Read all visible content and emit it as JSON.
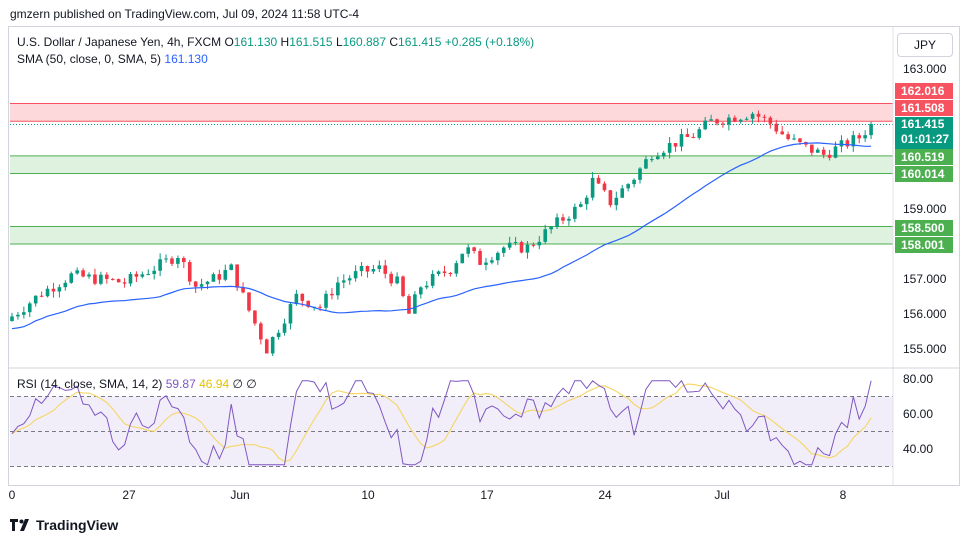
{
  "header": {
    "publisher": "gmzern published on TradingView.com, Jul 09, 2024 11:58 UTC-4"
  },
  "legend": {
    "symbol": "U.S. Dollar / Japanese Yen, 4h, FXCM",
    "o_label": "O",
    "o": "161.130",
    "h_label": "H",
    "h": "161.515",
    "l_label": "L",
    "l": "160.887",
    "c_label": "C",
    "c": "161.415",
    "change": "+0.285 (+0.18%)",
    "sma_label": "SMA (50, close, 0, SMA, 5)",
    "sma_value": "161.130",
    "rsi_label": "RSI (14, close, SMA, 14, 2)",
    "rsi_value": "59.87",
    "rsi_ma_value": "46.94",
    "rsi_extra1": "∅",
    "rsi_extra2": "∅"
  },
  "currency": "JPY",
  "price_tags": {
    "zone1_top": "162.016",
    "zone1_bottom": "161.508",
    "last_price": "161.415",
    "countdown": "01:01:27",
    "zone2_top": "160.519",
    "zone2_bottom": "160.014",
    "zone3_top": "158.500",
    "zone3_bottom": "158.001"
  },
  "footer": {
    "brand": "TradingView"
  },
  "chart_data": [
    {
      "type": "candlestick",
      "title": "U.S. Dollar / Japanese Yen, 4h, FXCM",
      "y_ticks": [
        155.0,
        156.0,
        157.0,
        158.0,
        159.0,
        163.0
      ],
      "x_ticks": [
        "0",
        "27",
        "Jun",
        "10",
        "17",
        "24",
        "Jul",
        "8"
      ],
      "ylim": [
        154.6,
        163.6
      ],
      "zones": [
        {
          "top": 162.016,
          "bottom": 161.508,
          "color": "#f7525f"
        },
        {
          "top": 160.519,
          "bottom": 160.014,
          "color": "#4caf50"
        },
        {
          "top": 158.5,
          "bottom": 158.001,
          "color": "#4caf50"
        }
      ],
      "last_price": 161.415,
      "key_points": [
        {
          "t": 0,
          "p": 155.8
        },
        {
          "t": 12,
          "p": 156.6
        },
        {
          "t": 22,
          "p": 157.1
        },
        {
          "t": 40,
          "p": 156.9
        },
        {
          "t": 52,
          "p": 157.4
        },
        {
          "t": 58,
          "p": 157.7
        },
        {
          "t": 64,
          "p": 156.8
        },
        {
          "t": 70,
          "p": 157.0
        },
        {
          "t": 76,
          "p": 157.3
        },
        {
          "t": 82,
          "p": 156.1
        },
        {
          "t": 88,
          "p": 155.0
        },
        {
          "t": 92,
          "p": 155.6
        },
        {
          "t": 98,
          "p": 156.5
        },
        {
          "t": 106,
          "p": 156.2
        },
        {
          "t": 112,
          "p": 156.9
        },
        {
          "t": 120,
          "p": 157.2
        },
        {
          "t": 126,
          "p": 157.3
        },
        {
          "t": 132,
          "p": 156.9
        },
        {
          "t": 136,
          "p": 156.0
        },
        {
          "t": 140,
          "p": 156.8
        },
        {
          "t": 150,
          "p": 157.3
        },
        {
          "t": 155,
          "p": 157.9
        },
        {
          "t": 160,
          "p": 157.5
        },
        {
          "t": 168,
          "p": 157.9
        },
        {
          "t": 176,
          "p": 157.9
        },
        {
          "t": 186,
          "p": 158.6
        },
        {
          "t": 194,
          "p": 159.1
        },
        {
          "t": 198,
          "p": 159.8
        },
        {
          "t": 204,
          "p": 159.2
        },
        {
          "t": 212,
          "p": 159.9
        },
        {
          "t": 218,
          "p": 160.6
        },
        {
          "t": 226,
          "p": 160.9
        },
        {
          "t": 232,
          "p": 161.1
        },
        {
          "t": 238,
          "p": 161.5
        },
        {
          "t": 244,
          "p": 161.6
        },
        {
          "t": 252,
          "p": 161.75
        },
        {
          "t": 258,
          "p": 161.45
        },
        {
          "t": 264,
          "p": 161.0
        },
        {
          "t": 270,
          "p": 160.75
        },
        {
          "t": 276,
          "p": 160.55
        },
        {
          "t": 282,
          "p": 160.8
        },
        {
          "t": 288,
          "p": 161.05
        },
        {
          "t": 292,
          "p": 161.4
        }
      ],
      "rsi_ticks": [
        40.0,
        60.0,
        80.0
      ],
      "rsi_levels": [
        70,
        50,
        30
      ]
    }
  ]
}
